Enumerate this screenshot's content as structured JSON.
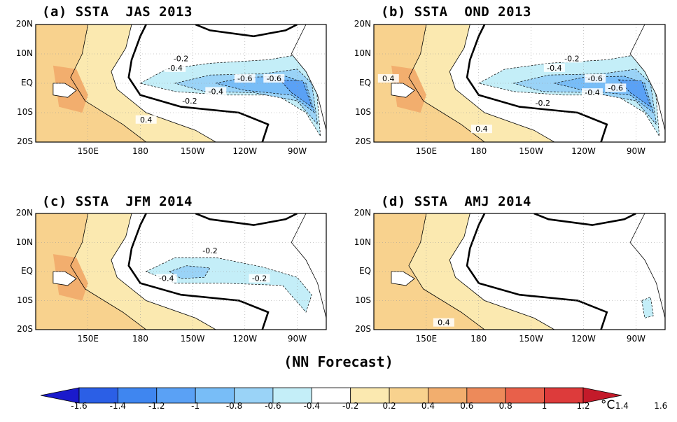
{
  "panels": [
    {
      "title": "(a) SSTA  JAS 2013",
      "contour_labels": [
        "-0.2",
        "-0.4",
        "-0.6",
        "-0.4",
        "-0.2",
        "0.4",
        "-0.6"
      ]
    },
    {
      "title": "(b) SSTA  OND 2013",
      "contour_labels": [
        "-0.2",
        "-0.4",
        "-0.6",
        "-0.4",
        "-0.6",
        "-0.2",
        "0.4",
        "0.4"
      ]
    },
    {
      "title": "(c) SSTA  JFM 2014",
      "contour_labels": [
        "-0.2",
        "-0.4",
        "-0.2"
      ]
    },
    {
      "title": "(d) SSTA  AMJ 2014",
      "contour_labels": [
        "0.4"
      ]
    }
  ],
  "lat_labels": [
    "20N",
    "10N",
    "EQ",
    "10S",
    "20S"
  ],
  "lon_labels": [
    "150E",
    "180",
    "150W",
    "120W",
    "90W"
  ],
  "caption": "(NN Forecast)",
  "colorbar": {
    "labels": [
      "-1.6",
      "-1.4",
      "-1.2",
      "-1",
      "-0.8",
      "-0.6",
      "-0.4",
      "-0.2",
      "0.2",
      "0.4",
      "0.6",
      "0.8",
      "1",
      "1.2",
      "1.4",
      "1.6"
    ],
    "colors": [
      "#1a1acc",
      "#2b5fe6",
      "#3f86f0",
      "#5aa1f5",
      "#78bdf7",
      "#9ad3f7",
      "#c4eef8",
      "#ffffff",
      "#fbe9b0",
      "#f8d28e",
      "#f2ae6e",
      "#ed8a5a",
      "#e8604a",
      "#dd3b3b",
      "#c41a2a"
    ],
    "unit": "°C"
  },
  "map_colors": {
    "land": "#ffffff",
    "warm1": "#fbe9b0",
    "warm2": "#f8d28e",
    "warm3": "#f2ae6e",
    "cool1": "#c4eef8",
    "cool2": "#9ad3f7",
    "cool3": "#78bdf7",
    "cool4": "#5aa1f5"
  }
}
